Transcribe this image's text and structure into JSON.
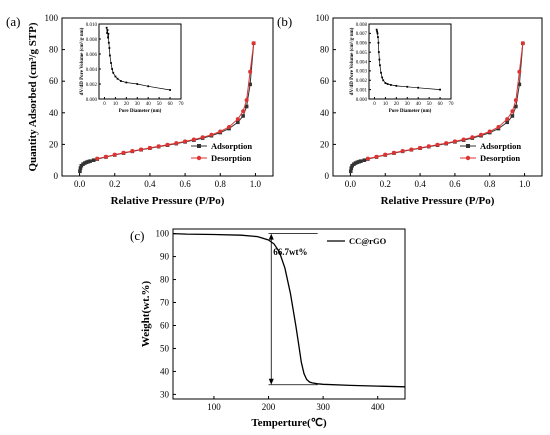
{
  "chart_data": [
    {
      "panel": "(a)",
      "type": "line",
      "xlabel": "Relative Pressure (P/Po)",
      "ylabel": "Quantity Adsorbed (cm³/g STP)",
      "xlim": [
        -0.1,
        1.1
      ],
      "ylim": [
        0,
        100
      ],
      "xticks": [
        0.0,
        0.2,
        0.4,
        0.6,
        0.8,
        1.0
      ],
      "yticks": [
        0,
        20,
        40,
        60,
        80,
        100
      ],
      "legend_position": "lower-right",
      "series": [
        {
          "name": "Adsorption",
          "color": "#333333",
          "marker": "square",
          "x": [
            0.002,
            0.005,
            0.01,
            0.02,
            0.03,
            0.04,
            0.05,
            0.06,
            0.08,
            0.1,
            0.15,
            0.2,
            0.25,
            0.3,
            0.35,
            0.4,
            0.45,
            0.5,
            0.55,
            0.6,
            0.65,
            0.7,
            0.75,
            0.8,
            0.85,
            0.9,
            0.93,
            0.95,
            0.97,
            0.99
          ],
          "y": [
            3,
            5,
            6.5,
            7.5,
            8.2,
            8.7,
            9.1,
            9.4,
            10,
            10.7,
            12,
            13.3,
            14.5,
            15.6,
            16.6,
            17.6,
            18.6,
            19.5,
            20.5,
            21.6,
            22.7,
            24,
            25.5,
            27.5,
            30,
            34,
            38,
            44,
            58,
            84
          ]
        },
        {
          "name": "Desorption",
          "color": "#dd3333",
          "marker": "circle",
          "x": [
            0.1,
            0.15,
            0.2,
            0.25,
            0.3,
            0.35,
            0.4,
            0.45,
            0.5,
            0.55,
            0.6,
            0.65,
            0.7,
            0.75,
            0.8,
            0.85,
            0.9,
            0.93,
            0.95,
            0.97,
            0.99
          ],
          "y": [
            11,
            12.2,
            13.5,
            14.7,
            15.8,
            16.8,
            17.8,
            18.8,
            19.8,
            20.8,
            21.9,
            23.1,
            24.5,
            26.1,
            28.2,
            31,
            36,
            41,
            48,
            66,
            84
          ]
        }
      ],
      "inset": {
        "xlabel": "Pore Diameter (nm)",
        "ylabel": "dV/dD Pore Volume (cm³/g·nm)",
        "xlim": [
          -5,
          70
        ],
        "ylim": [
          0,
          0.01
        ],
        "xticks": [
          0,
          10,
          20,
          30,
          40,
          50,
          60,
          70
        ],
        "yticks": [
          0.0,
          0.002,
          0.004,
          0.006,
          0.008,
          0.01
        ],
        "ytick_labels": [
          "0.000",
          "0.002",
          "0.004",
          "0.006",
          "0.008",
          "0.010"
        ],
        "x": [
          2,
          2.4,
          2.8,
          3.2,
          3.6,
          4,
          4.5,
          5,
          6,
          7,
          8,
          10,
          12,
          15,
          20,
          30,
          40,
          60
        ],
        "y": [
          0.0095,
          0.0088,
          0.0092,
          0.0082,
          0.0087,
          0.0075,
          0.0068,
          0.0058,
          0.0048,
          0.004,
          0.0035,
          0.003,
          0.0027,
          0.0024,
          0.0022,
          0.002,
          0.0017,
          0.0012
        ]
      }
    },
    {
      "panel": "(b)",
      "type": "line",
      "xlabel": "Relative Pressure (P/Po)",
      "ylabel": "",
      "xlim": [
        -0.1,
        1.1
      ],
      "ylim": [
        0,
        100
      ],
      "xticks": [
        0.0,
        0.2,
        0.4,
        0.6,
        0.8,
        1.0
      ],
      "yticks": [
        0,
        20,
        40,
        60,
        80,
        100
      ],
      "legend_position": "lower-right",
      "series": [
        {
          "name": "Adsorption",
          "color": "#333333",
          "marker": "square",
          "x": [
            0.002,
            0.005,
            0.01,
            0.02,
            0.03,
            0.04,
            0.05,
            0.06,
            0.08,
            0.1,
            0.15,
            0.2,
            0.25,
            0.3,
            0.35,
            0.4,
            0.45,
            0.5,
            0.55,
            0.6,
            0.65,
            0.7,
            0.75,
            0.8,
            0.85,
            0.9,
            0.93,
            0.95,
            0.97,
            0.99
          ],
          "y": [
            3,
            5,
            6.5,
            7.5,
            8.2,
            8.7,
            9.1,
            9.4,
            10,
            10.7,
            12,
            13.3,
            14.5,
            15.6,
            16.6,
            17.6,
            18.6,
            19.5,
            20.5,
            21.6,
            22.7,
            24,
            25.5,
            27.5,
            30,
            34,
            38,
            44,
            58,
            84
          ]
        },
        {
          "name": "Desorption",
          "color": "#dd3333",
          "marker": "circle",
          "x": [
            0.1,
            0.15,
            0.2,
            0.25,
            0.3,
            0.35,
            0.4,
            0.45,
            0.5,
            0.55,
            0.6,
            0.65,
            0.7,
            0.75,
            0.8,
            0.85,
            0.9,
            0.93,
            0.95,
            0.97,
            0.99
          ],
          "y": [
            11,
            12.2,
            13.5,
            14.7,
            15.8,
            16.8,
            17.8,
            18.8,
            19.8,
            20.8,
            21.9,
            23.1,
            24.5,
            26.1,
            28.2,
            31,
            36,
            41,
            48,
            66,
            84
          ]
        }
      ],
      "inset": {
        "xlabel": "Pore Diameter (nm)",
        "ylabel": "dV/dD Pore Volume (cm³/g·nm)",
        "xlim": [
          -5,
          70
        ],
        "ylim": [
          0,
          0.008
        ],
        "xticks": [
          0,
          10,
          20,
          30,
          40,
          50,
          60,
          70
        ],
        "yticks": [
          0.0,
          0.001,
          0.002,
          0.003,
          0.004,
          0.005,
          0.006,
          0.007,
          0.008
        ],
        "ytick_labels": [
          "0.000",
          "0.001",
          "0.002",
          "0.003",
          "0.004",
          "0.005",
          "0.006",
          "0.007",
          "0.008"
        ],
        "x": [
          2,
          2.4,
          2.8,
          3.2,
          3.6,
          4,
          4.5,
          5,
          6,
          7,
          8,
          10,
          12,
          15,
          20,
          30,
          40,
          60
        ],
        "y": [
          0.0074,
          0.0072,
          0.007,
          0.0066,
          0.006,
          0.005,
          0.0042,
          0.0036,
          0.0028,
          0.0023,
          0.002,
          0.0017,
          0.0016,
          0.0015,
          0.0014,
          0.0013,
          0.0012,
          0.001
        ]
      }
    },
    {
      "panel": "(c)",
      "type": "line",
      "xlabel": "Temperture(℃)",
      "ylabel": "Weight(wt.%)",
      "xlim": [
        25,
        450
      ],
      "ylim": [
        28,
        102
      ],
      "xticks": [
        100,
        200,
        300,
        400
      ],
      "yticks": [
        30,
        40,
        50,
        60,
        70,
        80,
        90,
        100
      ],
      "legend_position": "top-right",
      "annotation": "66.7wt%",
      "series": [
        {
          "name": "CC@rGO",
          "color": "#000000",
          "x": [
            25,
            50,
            100,
            150,
            180,
            200,
            210,
            220,
            230,
            240,
            250,
            255,
            260,
            265,
            270,
            275,
            280,
            290,
            300,
            350,
            400,
            450
          ],
          "y": [
            100,
            99.8,
            99.6,
            99.3,
            98.7,
            97.2,
            95.5,
            92,
            85,
            74,
            60,
            52,
            44,
            39,
            36.5,
            35.4,
            35,
            34.6,
            34.4,
            33.9,
            33.6,
            33.3
          ]
        }
      ]
    }
  ]
}
